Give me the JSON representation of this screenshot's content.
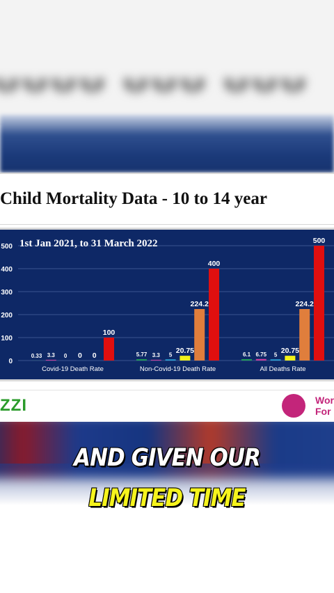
{
  "chart_data": {
    "type": "bar",
    "title": "Child Mortality Data - 10 to 14 year",
    "subtitle": "1st Jan 2021, to 31 March 2022",
    "categories": [
      "Covid-19 Death Rate",
      "Non-Covid-19 Death Rate",
      "All Deaths Rate"
    ],
    "series": [
      {
        "values": [
          0.33,
          5.77,
          6.1
        ],
        "color": "#1f9e55"
      },
      {
        "values": [
          3.3,
          3.3,
          6.75
        ],
        "color": "#c73c9c"
      },
      {
        "values": [
          0,
          5,
          5
        ],
        "color": "#2aa6d8"
      },
      {
        "values": [
          0,
          20.75,
          20.75
        ],
        "color": "#f2f21a"
      },
      {
        "values": [
          0,
          224.2,
          224.2
        ],
        "color": "#e07e3c"
      },
      {
        "values": [
          100,
          400,
          500
        ],
        "color": "#e00f0f"
      }
    ],
    "data_labels": [
      [
        "0.33",
        "3.3",
        "0",
        "0",
        "0",
        "100"
      ],
      [
        "5.77",
        "3.3",
        "5",
        "20.75",
        "224.2",
        "400"
      ],
      [
        "6.1",
        "6.75",
        "5",
        "20.75",
        "224.2",
        "500"
      ]
    ],
    "y_ticks": [
      "500",
      "400",
      "300",
      "200",
      "100",
      "0"
    ],
    "ylim": [
      0,
      500
    ],
    "grid": true
  },
  "brand": {
    "left": "ZZI",
    "right_line1": "Wor",
    "right_line2": "For"
  },
  "captions": {
    "line1": "AND GIVEN OUR",
    "line2": "LIMITED TIME"
  },
  "colors": {
    "chart_background": "#0e2866",
    "caption_highlight": "#f6f41d",
    "brand_green": "#2a9b2a",
    "brand_magenta": "#c3257a"
  }
}
